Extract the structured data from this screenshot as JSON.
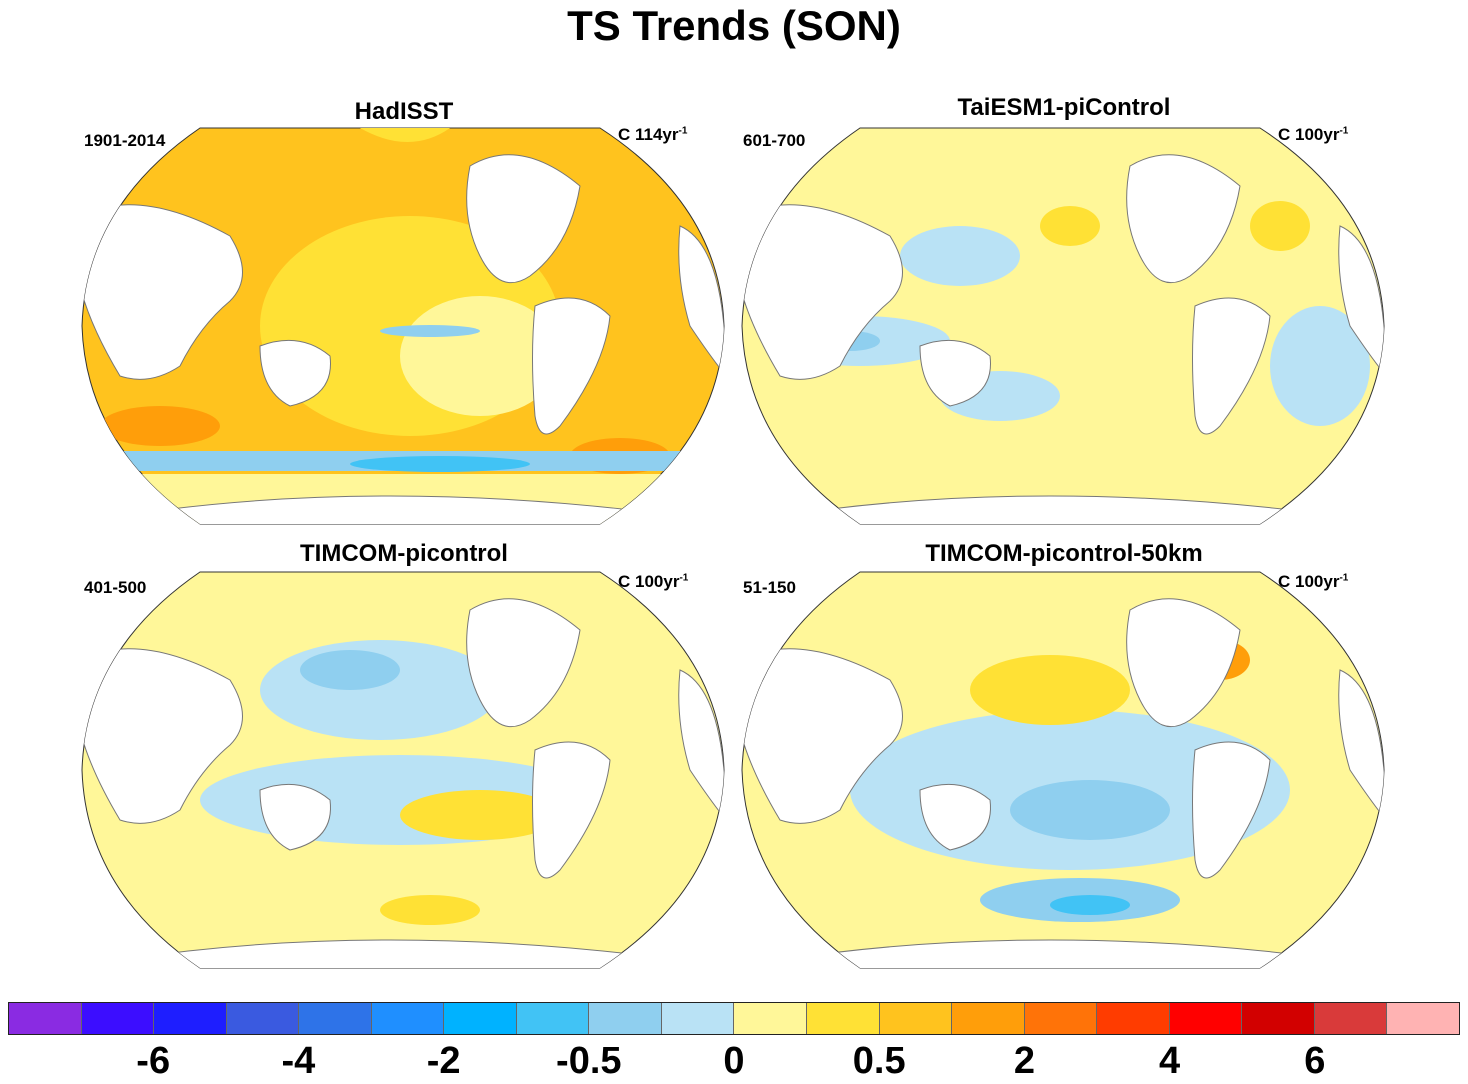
{
  "title": "TS Trends (SON)",
  "panels": [
    {
      "name": "HadISST",
      "period": "1901-2014",
      "units_base": "C 114yr",
      "units_exp": "-1"
    },
    {
      "name": "TaiESM1-piControl",
      "period": "601-700",
      "units_base": "C 100yr",
      "units_exp": "-1"
    },
    {
      "name": "TIMCOM-picontrol",
      "period": "401-500",
      "units_base": "C 100yr",
      "units_exp": "-1"
    },
    {
      "name": "TIMCOM-picontrol-50km",
      "period": "51-150",
      "units_base": "C 100yr",
      "units_exp": "-1"
    }
  ],
  "colorbar": {
    "colors": [
      "#8a2be2",
      "#3c0dff",
      "#1e1eff",
      "#3a5ae0",
      "#2e73e8",
      "#1f8fff",
      "#00b2ff",
      "#41c3f5",
      "#8fcfef",
      "#b9e2f5",
      "#fff799",
      "#ffe135",
      "#ffc31e",
      "#ff9e0a",
      "#ff7308",
      "#ff3c00",
      "#ff0000",
      "#d20000",
      "#d93a3a",
      "#ffb3b3"
    ],
    "labels": [
      "-6",
      "-4",
      "-2",
      "-0.5",
      "0",
      "0.5",
      "2",
      "4",
      "6"
    ]
  },
  "palette": {
    "land": "#ffffff",
    "coast": "#777777"
  }
}
